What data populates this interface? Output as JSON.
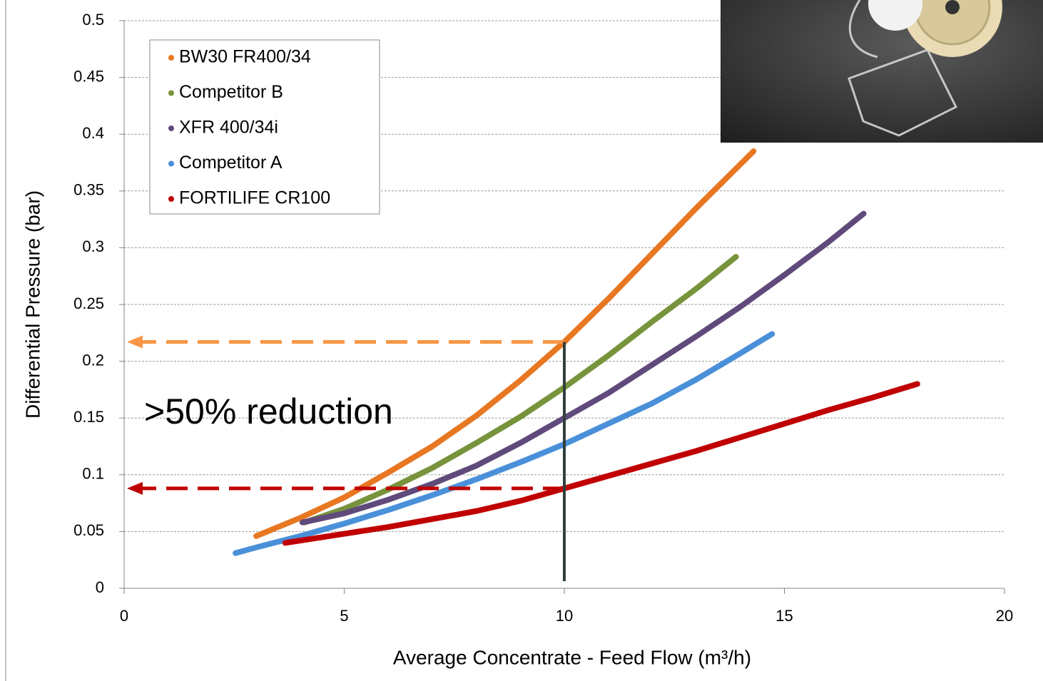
{
  "chart_data": {
    "type": "line",
    "xlabel": "Average Concentrate - Feed Flow (m³/h)",
    "ylabel": "Differential Pressure (bar)",
    "annotation": ">50% reduction",
    "xlim": [
      0,
      20
    ],
    "xticks": [
      0,
      5,
      10,
      15,
      20
    ],
    "ylim": [
      0,
      0.5
    ],
    "yticks": [
      0,
      0.05,
      0.1,
      0.15,
      0.2,
      0.25,
      0.3,
      0.35,
      0.4,
      0.45,
      0.5
    ],
    "grid": true,
    "legend": "upper left",
    "reference_lines": [
      {
        "x": 10,
        "y": 0.217,
        "color": "#f79646"
      },
      {
        "x": 10,
        "y": 0.088,
        "color": "#c00000"
      }
    ],
    "series": [
      {
        "name": "BW30 FR400/34",
        "color": "#e87722",
        "x": [
          3,
          4,
          5,
          6,
          7,
          8,
          9,
          10,
          11,
          12,
          13,
          14.3
        ],
        "values": [
          0.046,
          0.062,
          0.08,
          0.102,
          0.125,
          0.152,
          0.183,
          0.217,
          0.255,
          0.295,
          0.335,
          0.385
        ]
      },
      {
        "name": "Competitor B",
        "color": "#77933c",
        "x": [
          4.1,
          5,
          6,
          7,
          8,
          9,
          10,
          11,
          12,
          13,
          13.9
        ],
        "values": [
          0.058,
          0.07,
          0.087,
          0.106,
          0.128,
          0.151,
          0.177,
          0.205,
          0.235,
          0.264,
          0.292
        ]
      },
      {
        "name": "XFR 400/34i",
        "color": "#604a7b",
        "x": [
          4.05,
          5,
          6,
          7,
          8,
          9,
          10,
          11,
          12,
          13,
          14,
          15,
          16,
          16.8
        ],
        "values": [
          0.058,
          0.066,
          0.078,
          0.092,
          0.108,
          0.128,
          0.15,
          0.172,
          0.197,
          0.222,
          0.248,
          0.276,
          0.305,
          0.33
        ]
      },
      {
        "name": "Competitor A",
        "color": "#4a90d9",
        "x": [
          2.53,
          3,
          4,
          5,
          6,
          7,
          8,
          9,
          10,
          11,
          12,
          13,
          14,
          14.72
        ],
        "values": [
          0.031,
          0.036,
          0.046,
          0.057,
          0.069,
          0.082,
          0.096,
          0.111,
          0.127,
          0.145,
          0.163,
          0.184,
          0.207,
          0.224
        ]
      },
      {
        "name": "FORTILIFE CR100",
        "color": "#c00000",
        "x": [
          3.66,
          5,
          6,
          7,
          8,
          9,
          10,
          11,
          12,
          13,
          14,
          15,
          16,
          17,
          18.02
        ],
        "values": [
          0.04,
          0.048,
          0.054,
          0.061,
          0.068,
          0.077,
          0.088,
          0.099,
          0.11,
          0.121,
          0.133,
          0.145,
          0.157,
          0.168,
          0.18
        ]
      }
    ]
  }
}
